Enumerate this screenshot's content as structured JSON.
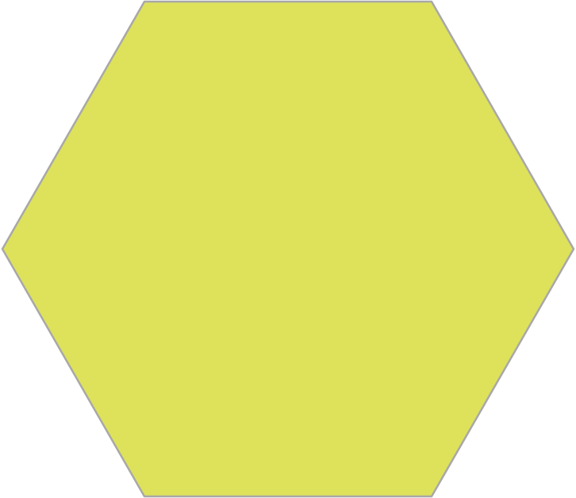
{
  "shape": {
    "kind": "hexagon",
    "orientation": "flat-top",
    "fill_color": "#DEE25A",
    "stroke_color": "#A8A8A8"
  }
}
